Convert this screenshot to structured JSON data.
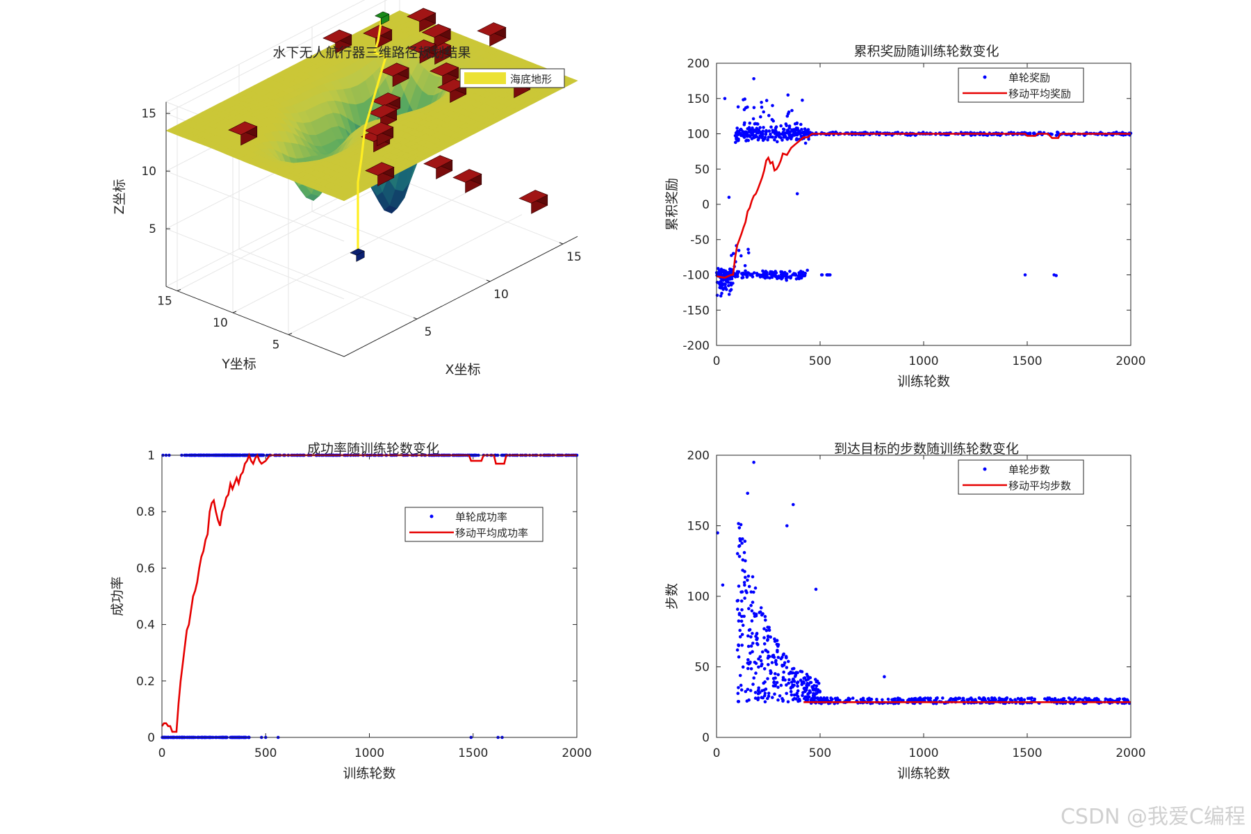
{
  "watermark": "CSDN @我爱C编程",
  "colors": {
    "scatter": "#0000ff",
    "line": "#e60000",
    "path": "#ffee22",
    "obstacle": "#8b0f0f",
    "start": "#0a1f70",
    "goal": "#1a8a1a",
    "terrain_top": "#cbc737",
    "terrain_low": "#0b2460",
    "axis": "#262626",
    "grid": "#e6e6e6"
  },
  "chart_data": [
    {
      "type": "surface3d",
      "title": "水下无人航行器三维路径规划结果",
      "xlabel": "X坐标",
      "ylabel": "Y坐标",
      "zlabel": "Z坐标",
      "xlim": [
        0,
        16
      ],
      "ylim": [
        0,
        16
      ],
      "zlim": [
        0,
        16
      ],
      "xticks": [
        5,
        10,
        15
      ],
      "yticks": [
        5,
        10,
        15
      ],
      "zticks": [
        5,
        10,
        15
      ],
      "legend": [
        {
          "name": "海底地形",
          "color": "#ece233"
        }
      ],
      "legend_position": "top-right",
      "grid": true,
      "terrain_flat_z": 13.5,
      "terrain_min_z": 2
    },
    {
      "type": "scatter+line",
      "title": "累积奖励随训练轮数变化",
      "xlabel": "训练轮数",
      "ylabel": "累积奖励",
      "xlim": [
        0,
        2000
      ],
      "ylim": [
        -200,
        200
      ],
      "xticks": [
        0,
        500,
        1000,
        1500,
        2000
      ],
      "yticks": [
        200,
        150,
        100,
        50,
        0,
        -50,
        -100,
        -150,
        -200
      ],
      "legend_position": "top-right",
      "series": [
        {
          "name": "单轮奖励",
          "kind": "scatter"
        },
        {
          "name": "移动平均奖励",
          "kind": "line",
          "x": [
            0,
            40,
            70,
            80,
            90,
            100,
            110,
            120,
            130,
            140,
            150,
            160,
            170,
            180,
            190,
            200,
            210,
            220,
            230,
            240,
            250,
            260,
            270,
            280,
            290,
            300,
            310,
            320,
            340,
            360,
            380,
            400,
            420,
            440,
            460,
            480,
            500,
            550,
            600,
            700,
            800,
            900,
            1000,
            1200,
            1400,
            1490,
            1500,
            1540,
            1550,
            1600,
            1620,
            1650,
            1660,
            1800,
            2000
          ],
          "y": [
            -102,
            -104,
            -100,
            -100,
            -75,
            -58,
            -50,
            -42,
            -33,
            -25,
            -10,
            -5,
            5,
            12,
            15,
            22,
            30,
            38,
            48,
            62,
            66,
            58,
            60,
            48,
            50,
            55,
            62,
            72,
            70,
            80,
            85,
            90,
            95,
            95,
            100,
            100,
            100,
            100,
            100,
            100,
            100,
            100,
            100,
            100,
            100,
            100,
            97,
            97,
            100,
            100,
            94,
            94,
            100,
            100,
            100
          ]
        }
      ]
    },
    {
      "type": "scatter+line",
      "title": "成功率随训练轮数变化",
      "xlabel": "训练轮数",
      "ylabel": "成功率",
      "xlim": [
        0,
        2000
      ],
      "ylim": [
        0,
        1
      ],
      "xticks": [
        0,
        500,
        1000,
        1500,
        2000
      ],
      "yticks": [
        1,
        0.8,
        0.6,
        0.4,
        0.2,
        0
      ],
      "legend_position": "center-right",
      "series": [
        {
          "name": "单轮成功率",
          "kind": "scatter"
        },
        {
          "name": "移动平均成功率",
          "kind": "line",
          "x": [
            0,
            10,
            20,
            30,
            40,
            50,
            60,
            70,
            80,
            90,
            100,
            110,
            120,
            130,
            140,
            150,
            160,
            170,
            180,
            190,
            200,
            210,
            220,
            230,
            240,
            250,
            260,
            270,
            280,
            290,
            300,
            310,
            320,
            330,
            340,
            350,
            360,
            370,
            380,
            390,
            400,
            410,
            420,
            430,
            440,
            450,
            460,
            470,
            480,
            500,
            520,
            540,
            560,
            600,
            800,
            1000,
            1200,
            1480,
            1490,
            1500,
            1540,
            1550,
            1600,
            1610,
            1620,
            1640,
            1650,
            1660,
            1800,
            2000
          ],
          "y": [
            0.04,
            0.05,
            0.05,
            0.04,
            0.04,
            0.02,
            0.02,
            0.02,
            0.12,
            0.2,
            0.26,
            0.32,
            0.38,
            0.4,
            0.45,
            0.5,
            0.52,
            0.55,
            0.6,
            0.64,
            0.66,
            0.7,
            0.72,
            0.8,
            0.83,
            0.84,
            0.8,
            0.77,
            0.75,
            0.8,
            0.82,
            0.85,
            0.86,
            0.9,
            0.88,
            0.9,
            0.92,
            0.9,
            0.93,
            0.94,
            0.97,
            0.98,
            1,
            0.98,
            0.97,
            0.99,
            1,
            0.98,
            0.97,
            0.98,
            1,
            1,
            1,
            1,
            1,
            1,
            1,
            1,
            0.98,
            0.98,
            0.98,
            1,
            1,
            0.97,
            0.97,
            0.97,
            0.97,
            1,
            1,
            1
          ]
        }
      ]
    },
    {
      "type": "scatter+line",
      "title": "到达目标的步数随训练轮数变化",
      "xlabel": "训练轮数",
      "ylabel": "步数",
      "xlim": [
        0,
        2000
      ],
      "ylim": [
        0,
        200
      ],
      "xticks": [
        0,
        500,
        1000,
        1500,
        2000
      ],
      "yticks": [
        200,
        150,
        100,
        50,
        0
      ],
      "legend_position": "top-right",
      "series": [
        {
          "name": "单轮步数",
          "kind": "scatter"
        },
        {
          "name": "移动平均步数",
          "kind": "line",
          "x": [
            420,
            500,
            600,
            800,
            1000,
            1200,
            1400,
            1600,
            1800,
            2000
          ],
          "y": [
            25,
            25,
            25,
            25,
            25,
            25,
            25,
            25,
            25,
            25
          ]
        }
      ]
    }
  ]
}
